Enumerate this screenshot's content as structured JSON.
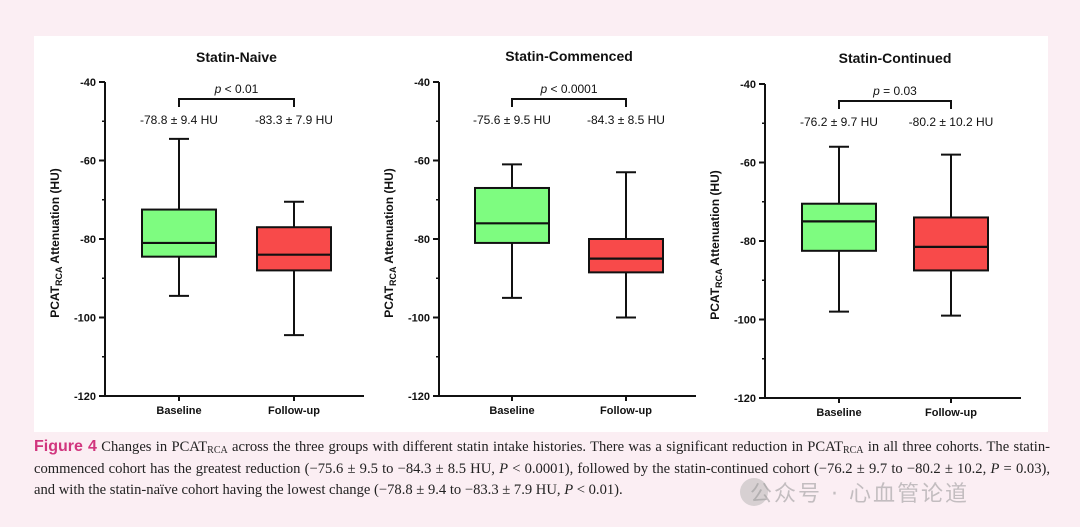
{
  "figure": {
    "label": "Figure 4",
    "caption": {
      "part1": " Changes in PCAT",
      "sub1": "RCA",
      "part2": " across the three groups with different statin intake histories. There was a significant reduction in PCAT",
      "sub2": "RCA",
      "part3": " in all three cohorts. The statin-commenced cohort has the greatest reduction (−75.6 ± 9.5 to −84.3 ± 8.5 HU, ",
      "p_sym1": "P",
      "part4": " < 0.0001), followed by the statin-continued cohort (−76.2 ± 9.7 to −80.2 ± 10.2, ",
      "p_sym2": "P",
      "part5": " = 0.03), and with the statin-naïve cohort having the lowest change (−78.8 ± 9.4 to −83.3 ± 7.9 HU, ",
      "p_sym3": "P",
      "part6": " < 0.01)."
    },
    "watermark": "公众号 · 心血管论道"
  },
  "colors": {
    "baseline": "#7efc80",
    "followup": "#f84a4a",
    "stroke": "#111111"
  },
  "chart_data": [
    {
      "type": "box",
      "title": "Statin-Naive",
      "ylabel": "PCAT",
      "ylabel_sub": "RCA",
      "ylabel_rest": " Attenuation (HU)",
      "ylim": [
        -120,
        -40
      ],
      "yticks": [
        -40,
        -60,
        -80,
        -100,
        -120
      ],
      "categories": [
        "Baseline",
        "Follow-up"
      ],
      "boxes": [
        {
          "min": -94.5,
          "q1": -84.5,
          "median": -81.0,
          "q3": -72.5,
          "max": -54.5
        },
        {
          "min": -104.5,
          "q1": -88.0,
          "median": -84.0,
          "q3": -77.0,
          "max": -70.5
        }
      ],
      "stats": [
        "-78.8 ± 9.4 HU",
        "-83.3 ± 7.9  HU"
      ],
      "pvalue_symbol": "p",
      "pvalue_text": " < 0.01"
    },
    {
      "type": "box",
      "title": "Statin-Commenced",
      "ylabel": "PCAT",
      "ylabel_sub": "RCA",
      "ylabel_rest": " Attenuation (HU)",
      "ylim": [
        -120,
        -40
      ],
      "yticks": [
        -40,
        -60,
        -80,
        -100,
        -120
      ],
      "categories": [
        "Baseline",
        "Follow-up"
      ],
      "boxes": [
        {
          "min": -95.0,
          "q1": -81.0,
          "median": -76.0,
          "q3": -67.0,
          "max": -61.0
        },
        {
          "min": -100.0,
          "q1": -88.5,
          "median": -85.0,
          "q3": -80.0,
          "max": -63.0
        }
      ],
      "stats": [
        "-75.6 ± 9.5 HU",
        "-84.3 ± 8.5  HU"
      ],
      "pvalue_symbol": "p",
      "pvalue_text": " < 0.0001"
    },
    {
      "type": "box",
      "title": "Statin-Continued",
      "ylabel": "PCAT",
      "ylabel_sub": "RCA",
      "ylabel_rest": " Attenuation (HU)",
      "ylim": [
        -120,
        -40
      ],
      "yticks": [
        -40,
        -60,
        -80,
        -100,
        -120
      ],
      "categories": [
        "Baseline",
        "Follow-up"
      ],
      "boxes": [
        {
          "min": -98.0,
          "q1": -82.5,
          "median": -75.0,
          "q3": -70.5,
          "max": -56.0
        },
        {
          "min": -99.0,
          "q1": -87.5,
          "median": -81.5,
          "q3": -74.0,
          "max": -58.0
        }
      ],
      "stats": [
        "-76.2 ± 9.7 HU",
        "-80.2 ± 10.2  HU"
      ],
      "pvalue_symbol": "p",
      "pvalue_text": " = 0.03"
    }
  ]
}
